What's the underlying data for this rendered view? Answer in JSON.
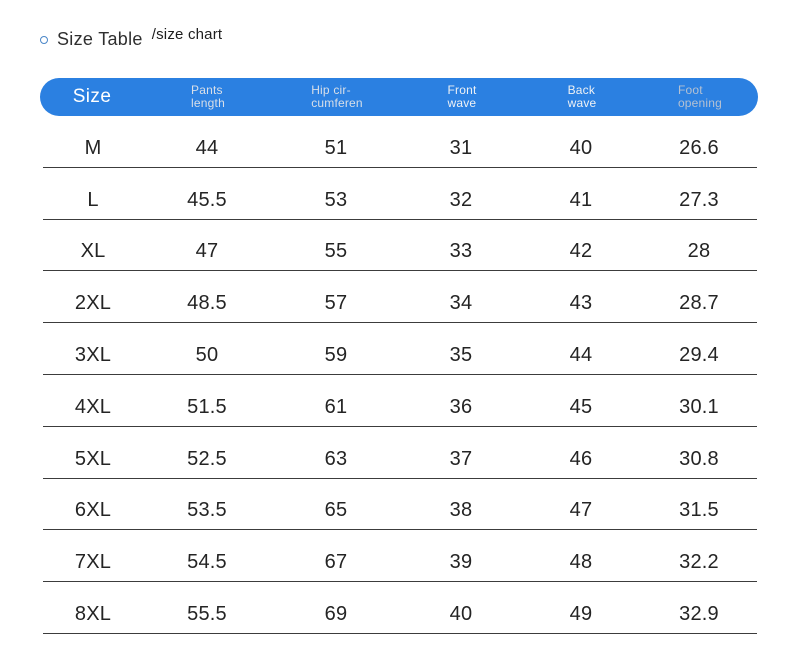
{
  "title": {
    "bullet_icon": "circle-outline-icon",
    "main": "Size Table",
    "sub": "/size chart"
  },
  "size_table": {
    "header": [
      {
        "line1": "Size"
      },
      {
        "line1": "Pants",
        "line2": "length"
      },
      {
        "line1": "Hip cir-",
        "line2": "cumferen"
      },
      {
        "line1": "Front",
        "line2": "wave"
      },
      {
        "line1": "Back",
        "line2": "wave"
      },
      {
        "line1": "Foot",
        "line2": "opening"
      }
    ]
  },
  "colors": {
    "header_bg": "#2b80e1",
    "header_text_primary": "#ffffff",
    "header_text_light": "#d9dfe8",
    "header_text_bright": "#eef1f5",
    "header_text_muted": "#b5c1d2",
    "row_divider": "#3c3c3c",
    "bullet_stroke": "#4a86c8",
    "body_text": "#242424",
    "background": "#ffffff"
  },
  "chart_data": {
    "type": "table",
    "title": "Size Table /size chart",
    "columns": [
      "Size",
      "Pants length",
      "Hip circumferen",
      "Front wave",
      "Back wave",
      "Foot opening"
    ],
    "rows": [
      [
        "M",
        "44",
        "51",
        "31",
        "40",
        "26.6"
      ],
      [
        "L",
        "45.5",
        "53",
        "32",
        "41",
        "27.3"
      ],
      [
        "XL",
        "47",
        "55",
        "33",
        "42",
        "28"
      ],
      [
        "2XL",
        "48.5",
        "57",
        "34",
        "43",
        "28.7"
      ],
      [
        "3XL",
        "50",
        "59",
        "35",
        "44",
        "29.4"
      ],
      [
        "4XL",
        "51.5",
        "61",
        "36",
        "45",
        "30.1"
      ],
      [
        "5XL",
        "52.5",
        "63",
        "37",
        "46",
        "30.8"
      ],
      [
        "6XL",
        "53.5",
        "65",
        "38",
        "47",
        "31.5"
      ],
      [
        "7XL",
        "54.5",
        "67",
        "39",
        "48",
        "32.2"
      ],
      [
        "8XL",
        "55.5",
        "69",
        "40",
        "49",
        "32.9"
      ]
    ]
  }
}
